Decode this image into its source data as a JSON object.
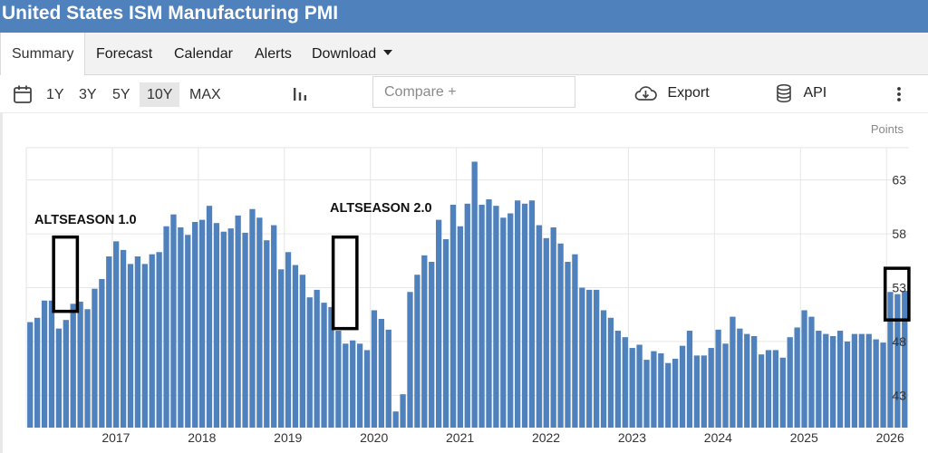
{
  "header": {
    "title": "United States ISM Manufacturing PMI"
  },
  "tabs": [
    {
      "label": "Summary",
      "active": true
    },
    {
      "label": "Forecast"
    },
    {
      "label": "Calendar"
    },
    {
      "label": "Alerts"
    },
    {
      "label": "Download"
    }
  ],
  "toolbar": {
    "ranges": [
      "1Y",
      "3Y",
      "5Y",
      "10Y",
      "MAX"
    ],
    "selected_range": "10Y",
    "compare_placeholder": "Compare +",
    "export_label": "Export",
    "api_label": "API"
  },
  "icons": [
    "calendar-icon",
    "bar-chart-icon",
    "cloud-download-icon",
    "database-icon",
    "more-vertical-icon"
  ],
  "colors": {
    "header": "#4f81bd",
    "bar": "#4f81bd",
    "annotation": "#000000"
  },
  "chart_data": {
    "type": "bar",
    "title": "United States ISM Manufacturing PMI",
    "ylabel": "Points",
    "ylim": [
      40,
      66
    ],
    "yticks": [
      43,
      48,
      53,
      58,
      63
    ],
    "xticks": [
      {
        "label": "2017",
        "index": 12
      },
      {
        "label": "2018",
        "index": 24
      },
      {
        "label": "2019",
        "index": 36
      },
      {
        "label": "2020",
        "index": 48
      },
      {
        "label": "2021",
        "index": 60
      },
      {
        "label": "2022",
        "index": 72
      },
      {
        "label": "2023",
        "index": 84
      },
      {
        "label": "2024",
        "index": 96
      },
      {
        "label": "2025",
        "index": 108
      },
      {
        "label": "2026",
        "index": 120
      }
    ],
    "grid": true,
    "values": [
      49.8,
      50.2,
      51.8,
      51.8,
      49.2,
      50.0,
      51.5,
      51.7,
      51.0,
      52.9,
      53.8,
      55.9,
      57.3,
      56.5,
      55.2,
      55.9,
      55.2,
      56.1,
      56.3,
      58.7,
      59.8,
      58.6,
      57.9,
      59.1,
      59.3,
      60.6,
      59.0,
      58.2,
      58.5,
      59.7,
      58.1,
      60.3,
      59.5,
      57.4,
      58.8,
      54.7,
      56.3,
      55.1,
      54.2,
      52.1,
      52.8,
      51.6,
      51.2,
      49.0,
      47.8,
      48.1,
      47.8,
      47.2,
      50.9,
      50.1,
      49.1,
      41.5,
      43.1,
      52.6,
      54.2,
      56.0,
      55.4,
      59.3,
      57.5,
      60.7,
      58.7,
      60.8,
      64.7,
      60.7,
      61.2,
      60.6,
      59.5,
      59.9,
      61.1,
      60.8,
      61.1,
      58.8,
      57.6,
      58.6,
      57.1,
      55.4,
      56.1,
      53.0,
      52.8,
      52.8,
      50.9,
      50.2,
      49.0,
      48.4,
      47.4,
      47.7,
      46.3,
      47.1,
      46.9,
      46.0,
      46.4,
      47.6,
      49.0,
      46.7,
      46.7,
      47.4,
      49.1,
      47.8,
      50.3,
      49.2,
      48.7,
      48.5,
      46.8,
      47.2,
      47.2,
      46.5,
      48.4,
      49.3,
      50.9,
      50.3,
      49.0,
      48.7,
      48.5,
      49.0,
      48.0,
      48.7,
      48.7,
      48.7,
      48.2,
      47.9,
      52.6,
      52.4,
      52.7
    ],
    "annotations": [
      {
        "label": "ALTSEASON 1.0",
        "box_start": 4,
        "box_end": 6,
        "box_ymin": 50.8,
        "box_ymax": 57.7
      },
      {
        "label": "ALTSEASON 2.0",
        "box_start": 43,
        "box_end": 45,
        "box_ymin": 49.2,
        "box_ymax": 57.7
      },
      {
        "label": "",
        "box_start": 120,
        "box_end": 122,
        "box_ymin": 50.0,
        "box_ymax": 54.8
      }
    ]
  }
}
